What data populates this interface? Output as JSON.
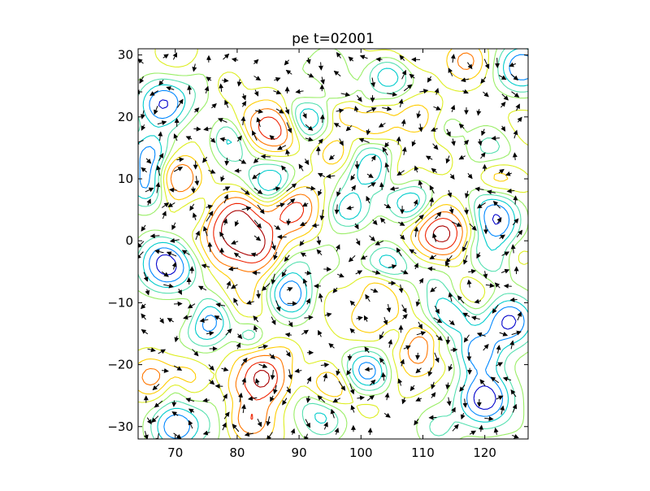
{
  "chart_data": {
    "type": "contour",
    "title": "pe t=02001",
    "xlabel": "",
    "ylabel": "",
    "xlim": [
      64,
      127
    ],
    "ylim": [
      -32,
      31
    ],
    "xticks": [
      70,
      80,
      90,
      100,
      110,
      120
    ],
    "yticks": [
      -30,
      -20,
      -10,
      0,
      10,
      20,
      30
    ],
    "xtick_labels": [
      "70",
      "80",
      "90",
      "100",
      "110",
      "120"
    ],
    "ytick_labels": [
      "−30",
      "−20",
      "−10",
      "0",
      "10",
      "20",
      "30"
    ],
    "grid": false,
    "legend": "none",
    "colormap": "jet",
    "contour_colors": [
      "#0000cc",
      "#0088ff",
      "#00cccc",
      "#55e0b0",
      "#99ee66",
      "#ddee22",
      "#ffcc00",
      "#ff7700",
      "#ee2200",
      "#aa0000"
    ],
    "arrow_color": "#000000",
    "features": [
      {
        "kind": "high",
        "x": 88.5,
        "y": 5.5,
        "strength": 1.0
      },
      {
        "kind": "high",
        "x": 113,
        "y": 1,
        "strength": 1.0
      },
      {
        "kind": "high",
        "x": 76.5,
        "y": 2.5,
        "strength": 0.85
      },
      {
        "kind": "high",
        "x": 70,
        "y": 10,
        "strength": 0.8
      },
      {
        "kind": "high",
        "x": 83,
        "y": -1,
        "strength": 0.8
      },
      {
        "kind": "high",
        "x": 84,
        "y": -22,
        "strength": 0.9
      },
      {
        "kind": "high",
        "x": 86.5,
        "y": 18,
        "strength": 0.75
      },
      {
        "kind": "high",
        "x": 81,
        "y": 5,
        "strength": 0.55
      },
      {
        "kind": "high",
        "x": 106.5,
        "y": 11,
        "strength": 0.6
      },
      {
        "kind": "high",
        "x": 82,
        "y": -29,
        "strength": 0.6
      },
      {
        "kind": "high",
        "x": 95,
        "y": -24,
        "strength": 0.55
      },
      {
        "kind": "high",
        "x": 117,
        "y": -9,
        "strength": 0.6
      },
      {
        "kind": "high",
        "x": 110,
        "y": -17,
        "strength": 0.5
      },
      {
        "kind": "high",
        "x": 102,
        "y": 19,
        "strength": 0.4
      },
      {
        "kind": "high",
        "x": 117,
        "y": 29,
        "strength": 0.5
      },
      {
        "kind": "high",
        "x": 66,
        "y": -22,
        "strength": 0.5
      },
      {
        "kind": "high",
        "x": 122,
        "y": 10,
        "strength": 0.45
      },
      {
        "kind": "high",
        "x": 96,
        "y": 14,
        "strength": 0.45
      },
      {
        "kind": "high",
        "x": 73,
        "y": -12,
        "strength": 0.4
      },
      {
        "kind": "low",
        "x": 69,
        "y": -3.5,
        "strength": 0.95
      },
      {
        "kind": "low",
        "x": 86,
        "y": 8.5,
        "strength": 0.85
      },
      {
        "kind": "low",
        "x": 74,
        "y": 3.5,
        "strength": 0.8
      },
      {
        "kind": "low",
        "x": 75,
        "y": -13,
        "strength": 0.8
      },
      {
        "kind": "low",
        "x": 91,
        "y": 20,
        "strength": 0.7
      },
      {
        "kind": "low",
        "x": 79,
        "y": 17,
        "strength": 0.7
      },
      {
        "kind": "low",
        "x": 68,
        "y": 22,
        "strength": 0.65
      },
      {
        "kind": "low",
        "x": 115,
        "y": -11,
        "strength": 0.8
      },
      {
        "kind": "low",
        "x": 124,
        "y": -13,
        "strength": 0.8
      },
      {
        "kind": "low",
        "x": 126,
        "y": 28,
        "strength": 0.75
      },
      {
        "kind": "low",
        "x": 120,
        "y": -25.5,
        "strength": 0.9
      },
      {
        "kind": "low",
        "x": 101,
        "y": -21,
        "strength": 0.7
      },
      {
        "kind": "low",
        "x": 70,
        "y": -30,
        "strength": 0.7
      },
      {
        "kind": "low",
        "x": 93,
        "y": -28,
        "strength": 0.75
      },
      {
        "kind": "low",
        "x": 89,
        "y": -9,
        "strength": 0.65
      },
      {
        "kind": "low",
        "x": 104,
        "y": -4,
        "strength": 0.6
      },
      {
        "kind": "low",
        "x": 119,
        "y": -18,
        "strength": 0.65
      },
      {
        "kind": "low",
        "x": 98,
        "y": 5,
        "strength": 0.5
      },
      {
        "kind": "low",
        "x": 66,
        "y": 9,
        "strength": 0.7
      },
      {
        "kind": "low",
        "x": 122,
        "y": 3,
        "strength": 0.6
      },
      {
        "kind": "low",
        "x": 108,
        "y": 6,
        "strength": 0.55
      },
      {
        "kind": "low",
        "x": 66,
        "y": 14,
        "strength": 0.6
      },
      {
        "kind": "low",
        "x": 104,
        "y": 27,
        "strength": 0.5
      }
    ]
  }
}
